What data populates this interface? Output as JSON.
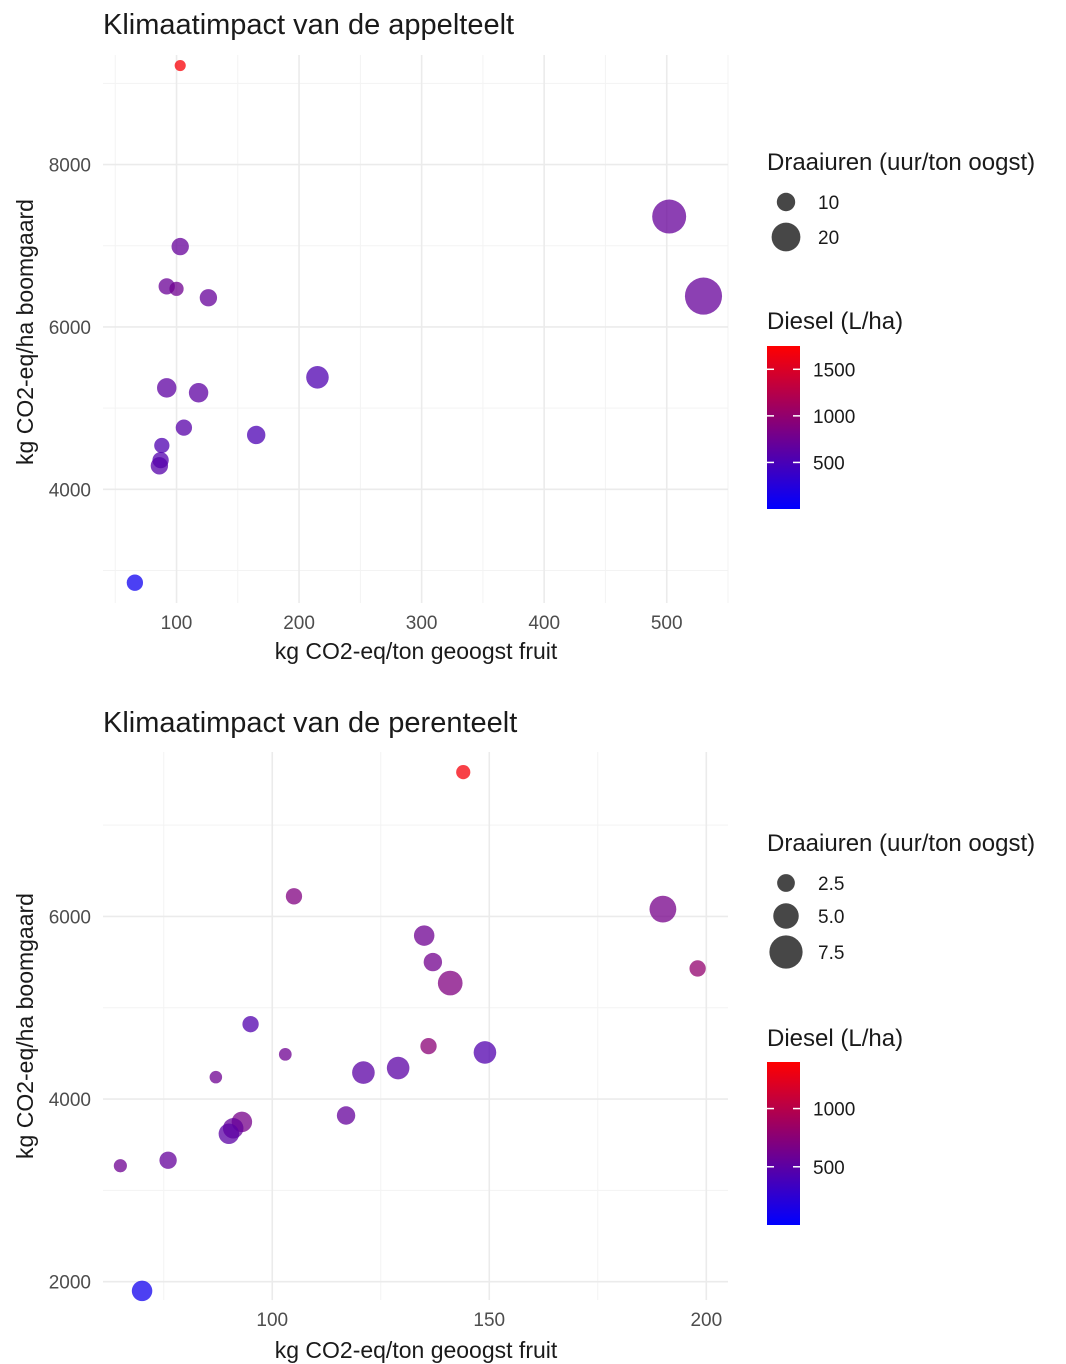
{
  "chart_data": [
    {
      "type": "scatter",
      "title": "Klimaatimpact van de appelteelt",
      "xlabel": "kg CO2-eq/ton geoogst fruit",
      "ylabel": "kg CO2-eq/ha boomgaard",
      "xlim": [
        40,
        550
      ],
      "ylim": [
        2600,
        9350
      ],
      "x_ticks": [
        100,
        200,
        300,
        400,
        500
      ],
      "y_ticks": [
        4000,
        6000,
        8000
      ],
      "x_tick_labels": [
        "100",
        "200",
        "300",
        "400",
        "500"
      ],
      "y_tick_labels": [
        "4000",
        "6000",
        "8000"
      ],
      "grid": true,
      "legend_position": "right",
      "size_legend": {
        "title": "Draaiuren (uur/ton oogst)",
        "values": [
          10,
          20
        ],
        "labels": [
          "10",
          "20"
        ]
      },
      "color_legend": {
        "title": "Diesel (L/ha)",
        "low_color": "#0000ff",
        "high_color": "#ff0000",
        "min": 0,
        "max": 1750,
        "breaks": [
          1500,
          1000,
          500
        ],
        "labels": [
          "1500",
          "1000",
          "500"
        ]
      },
      "points": [
        {
          "x": 103,
          "y": 9220,
          "size": 3,
          "diesel": 1700
        },
        {
          "x": 103,
          "y": 6990,
          "size": 9,
          "diesel": 700
        },
        {
          "x": 92,
          "y": 6500,
          "size": 8,
          "diesel": 720
        },
        {
          "x": 100,
          "y": 6470,
          "size": 6,
          "diesel": 760
        },
        {
          "x": 126,
          "y": 6360,
          "size": 9,
          "diesel": 700
        },
        {
          "x": 92,
          "y": 5250,
          "size": 11,
          "diesel": 640
        },
        {
          "x": 118,
          "y": 5190,
          "size": 11,
          "diesel": 640
        },
        {
          "x": 106,
          "y": 4760,
          "size": 8,
          "diesel": 600
        },
        {
          "x": 215,
          "y": 5380,
          "size": 14,
          "diesel": 540
        },
        {
          "x": 165,
          "y": 4670,
          "size": 10,
          "diesel": 520
        },
        {
          "x": 88,
          "y": 4540,
          "size": 7,
          "diesel": 540
        },
        {
          "x": 87,
          "y": 4360,
          "size": 8,
          "diesel": 560
        },
        {
          "x": 86,
          "y": 4290,
          "size": 9,
          "diesel": 580
        },
        {
          "x": 66,
          "y": 2850,
          "size": 8,
          "diesel": 100
        },
        {
          "x": 502,
          "y": 7360,
          "size": 25,
          "diesel": 700
        },
        {
          "x": 530,
          "y": 6380,
          "size": 28,
          "diesel": 700
        }
      ]
    },
    {
      "type": "scatter",
      "title": "Klimaatimpact van de perenteelt",
      "xlabel": "kg CO2-eq/ton geoogst fruit",
      "ylabel": "kg CO2-eq/ha boomgaard",
      "xlim": [
        61,
        205
      ],
      "ylim": [
        1800,
        7800
      ],
      "x_ticks": [
        100,
        150,
        200
      ],
      "y_ticks": [
        2000,
        4000,
        6000
      ],
      "x_tick_labels": [
        "100",
        "150",
        "200"
      ],
      "y_tick_labels": [
        "2000",
        "4000",
        "6000"
      ],
      "grid": true,
      "legend_position": "right",
      "size_legend": {
        "title": "Draaiuren (uur/ton oogst)",
        "values": [
          2.5,
          5.0,
          7.5
        ],
        "labels": [
          "2.5",
          "5.0",
          "7.5"
        ]
      },
      "color_legend": {
        "title": "Diesel (L/ha)",
        "low_color": "#0000ff",
        "high_color": "#ff0000",
        "min": 0,
        "max": 1400,
        "breaks": [
          1000,
          500
        ],
        "labels": [
          "1000",
          "500"
        ]
      },
      "points": [
        {
          "x": 144,
          "y": 7580,
          "size": 2.0,
          "diesel": 1350
        },
        {
          "x": 105,
          "y": 6220,
          "size": 3.0,
          "diesel": 700
        },
        {
          "x": 190,
          "y": 6080,
          "size": 8.0,
          "diesel": 650
        },
        {
          "x": 135,
          "y": 5790,
          "size": 5.0,
          "diesel": 600
        },
        {
          "x": 137,
          "y": 5500,
          "size": 4.0,
          "diesel": 620
        },
        {
          "x": 141,
          "y": 5270,
          "size": 7.0,
          "diesel": 700
        },
        {
          "x": 198,
          "y": 5430,
          "size": 3.0,
          "diesel": 800
        },
        {
          "x": 95,
          "y": 4820,
          "size": 3.0,
          "diesel": 450
        },
        {
          "x": 103,
          "y": 4490,
          "size": 1.3,
          "diesel": 600
        },
        {
          "x": 136,
          "y": 4580,
          "size": 3.0,
          "diesel": 750
        },
        {
          "x": 149,
          "y": 4510,
          "size": 6.0,
          "diesel": 450
        },
        {
          "x": 87,
          "y": 4240,
          "size": 1.2,
          "diesel": 600
        },
        {
          "x": 121,
          "y": 4290,
          "size": 6.0,
          "diesel": 500
        },
        {
          "x": 129,
          "y": 4340,
          "size": 6.0,
          "diesel": 500
        },
        {
          "x": 117,
          "y": 3820,
          "size": 4.0,
          "diesel": 550
        },
        {
          "x": 93,
          "y": 3750,
          "size": 5.0,
          "diesel": 650
        },
        {
          "x": 91,
          "y": 3680,
          "size": 5.0,
          "diesel": 550
        },
        {
          "x": 90,
          "y": 3620,
          "size": 5.0,
          "diesel": 500
        },
        {
          "x": 76,
          "y": 3330,
          "size": 3.5,
          "diesel": 550
        },
        {
          "x": 65,
          "y": 3270,
          "size": 1.5,
          "diesel": 600
        },
        {
          "x": 70,
          "y": 1900,
          "size": 5.0,
          "diesel": 100
        }
      ]
    }
  ]
}
